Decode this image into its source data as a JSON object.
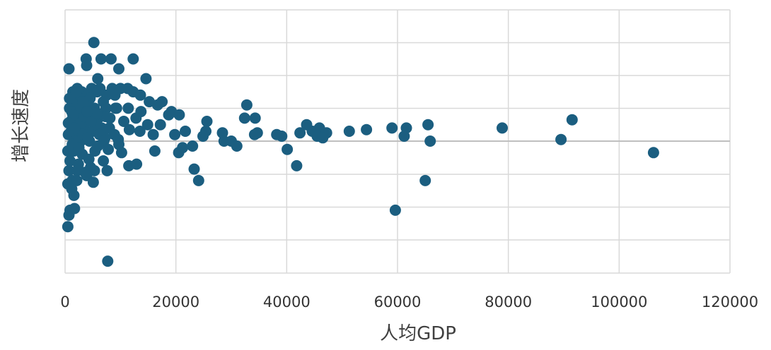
{
  "chart_data": {
    "type": "scatter",
    "title": "",
    "xlabel": "人均GDP",
    "ylabel": "增长速度",
    "xlim": [
      0,
      120000
    ],
    "x_ticks": [
      "0",
      "20000",
      "40000",
      "60000",
      "80000",
      "100000",
      "120000"
    ],
    "y_gridline_count": 8,
    "grid": true,
    "legend": "none",
    "marker_color": "#1b5e80",
    "grid_color": "#d9d9d9",
    "zero_line_color": "#bfbfbf",
    "y_units_note": "y axis has no tick labels; y values are in gridline units (0 = bold baseline, 1 unit = one gridline step)",
    "series": [
      {
        "points": [
          [
            5200,
            3.0
          ],
          [
            3800,
            2.5
          ],
          [
            6500,
            2.5
          ],
          [
            8300,
            2.5
          ],
          [
            12300,
            2.5
          ],
          [
            3900,
            2.3
          ],
          [
            700,
            2.2
          ],
          [
            9700,
            2.2
          ],
          [
            14600,
            1.9
          ],
          [
            5900,
            1.9
          ],
          [
            1400,
            1.5
          ],
          [
            2200,
            1.6
          ],
          [
            4800,
            1.6
          ],
          [
            6300,
            1.6
          ],
          [
            8500,
            1.6
          ],
          [
            10000,
            1.6
          ],
          [
            11300,
            1.6
          ],
          [
            12300,
            1.5
          ],
          [
            3000,
            1.5
          ],
          [
            5800,
            1.5
          ],
          [
            4200,
            1.4
          ],
          [
            7500,
            1.4
          ],
          [
            9000,
            1.4
          ],
          [
            13600,
            1.4
          ],
          [
            15200,
            1.2
          ],
          [
            17500,
            1.2
          ],
          [
            1800,
            1.3
          ],
          [
            2600,
            1.3
          ],
          [
            4500,
            1.3
          ],
          [
            6900,
            1.2
          ],
          [
            16700,
            1.1
          ],
          [
            32800,
            1.1
          ],
          [
            800,
            1.0
          ],
          [
            1900,
            1.1
          ],
          [
            3700,
            1.1
          ],
          [
            5300,
            1.0
          ],
          [
            7400,
            1.0
          ],
          [
            9300,
            1.0
          ],
          [
            11400,
            1.0
          ],
          [
            13700,
            0.9
          ],
          [
            19200,
            0.9
          ],
          [
            20600,
            0.8
          ],
          [
            18700,
            0.8
          ],
          [
            34300,
            0.7
          ],
          [
            32400,
            0.7
          ],
          [
            25600,
            0.6
          ],
          [
            1200,
            0.9
          ],
          [
            2500,
            0.8
          ],
          [
            4100,
            0.8
          ],
          [
            6000,
            0.7
          ],
          [
            8100,
            0.7
          ],
          [
            10600,
            0.6
          ],
          [
            12800,
            0.7
          ],
          [
            14900,
            0.5
          ],
          [
            17200,
            0.5
          ],
          [
            43600,
            0.5
          ],
          [
            65500,
            0.5
          ],
          [
            59000,
            0.4
          ],
          [
            61600,
            0.4
          ],
          [
            45900,
            0.4
          ],
          [
            78900,
            0.4
          ],
          [
            54400,
            0.35
          ],
          [
            51300,
            0.3
          ],
          [
            47200,
            0.25
          ],
          [
            44600,
            0.3
          ],
          [
            42400,
            0.25
          ],
          [
            38200,
            0.2
          ],
          [
            39100,
            0.15
          ],
          [
            34700,
            0.25
          ],
          [
            34200,
            0.2
          ],
          [
            25400,
            0.3
          ],
          [
            24900,
            0.15
          ],
          [
            21700,
            0.3
          ],
          [
            19800,
            0.2
          ],
          [
            28400,
            0.25
          ],
          [
            61200,
            0.15
          ],
          [
            45500,
            0.15
          ],
          [
            46500,
            0.1
          ],
          [
            1000,
            0.6
          ],
          [
            2000,
            0.5
          ],
          [
            3400,
            0.4
          ],
          [
            5000,
            0.3
          ],
          [
            6800,
            0.3
          ],
          [
            8900,
            0.2
          ],
          [
            11600,
            0.35
          ],
          [
            13500,
            0.3
          ],
          [
            15900,
            0.2
          ],
          [
            600,
            0.2
          ],
          [
            1500,
            0.1
          ],
          [
            2800,
            0.0
          ],
          [
            4400,
            0.0
          ],
          [
            7200,
            0.1
          ],
          [
            9600,
            0.05
          ],
          [
            28700,
            0.0
          ],
          [
            30000,
            0.0
          ],
          [
            89500,
            0.05
          ],
          [
            65900,
            0.0
          ],
          [
            91500,
            0.65
          ],
          [
            31000,
            -0.15
          ],
          [
            21200,
            -0.2
          ],
          [
            23000,
            -0.15
          ],
          [
            16200,
            -0.3
          ],
          [
            40100,
            -0.25
          ],
          [
            106200,
            -0.35
          ],
          [
            500,
            -0.3
          ],
          [
            1600,
            -0.3
          ],
          [
            3100,
            -0.4
          ],
          [
            5400,
            -0.3
          ],
          [
            7800,
            -0.25
          ],
          [
            10200,
            -0.35
          ],
          [
            9700,
            -0.1
          ],
          [
            900,
            -0.6
          ],
          [
            2400,
            -0.7
          ],
          [
            4600,
            -0.8
          ],
          [
            6900,
            -0.6
          ],
          [
            11500,
            -0.75
          ],
          [
            12900,
            -0.7
          ],
          [
            20500,
            -0.35
          ],
          [
            41800,
            -0.75
          ],
          [
            700,
            -0.9
          ],
          [
            2200,
            -0.9
          ],
          [
            3600,
            -0.95
          ],
          [
            5300,
            -0.9
          ],
          [
            7600,
            -0.9
          ],
          [
            23300,
            -0.85
          ],
          [
            500,
            -1.3
          ],
          [
            1300,
            -1.2
          ],
          [
            2100,
            -1.2
          ],
          [
            3900,
            -1.05
          ],
          [
            5100,
            -1.25
          ],
          [
            24100,
            -1.2
          ],
          [
            65000,
            -1.2
          ],
          [
            1200,
            -1.45
          ],
          [
            1600,
            -1.65
          ],
          [
            900,
            -2.1
          ],
          [
            1700,
            -2.05
          ],
          [
            700,
            -2.25
          ],
          [
            500,
            -2.6
          ],
          [
            59600,
            -2.1
          ],
          [
            7700,
            -3.65
          ],
          [
            2600,
            0.3
          ],
          [
            3300,
            0.6
          ],
          [
            4900,
            0.9
          ],
          [
            6600,
            0.4
          ],
          [
            8000,
            0.4
          ],
          [
            1100,
            0.3
          ],
          [
            2900,
            1.0
          ],
          [
            5600,
            0.5
          ],
          [
            7300,
            0.75
          ],
          [
            9100,
            1.0
          ],
          [
            1800,
            0.0
          ],
          [
            3200,
            0.2
          ],
          [
            4700,
            0.6
          ],
          [
            6200,
            0.2
          ],
          [
            1400,
            0.8
          ],
          [
            2700,
            0.55
          ],
          [
            4100,
            0.1
          ],
          [
            5800,
            0.85
          ],
          [
            7000,
            0.0
          ],
          [
            600,
            0.55
          ],
          [
            1700,
            0.4
          ],
          [
            3500,
            0.75
          ],
          [
            1300,
            -0.1
          ],
          [
            2500,
            -0.2
          ],
          [
            4300,
            -0.55
          ],
          [
            5900,
            -0.15
          ],
          [
            800,
            1.3
          ],
          [
            2000,
            1.5
          ],
          [
            3200,
            1.2
          ],
          [
            4000,
            0.9
          ]
        ]
      }
    ]
  }
}
